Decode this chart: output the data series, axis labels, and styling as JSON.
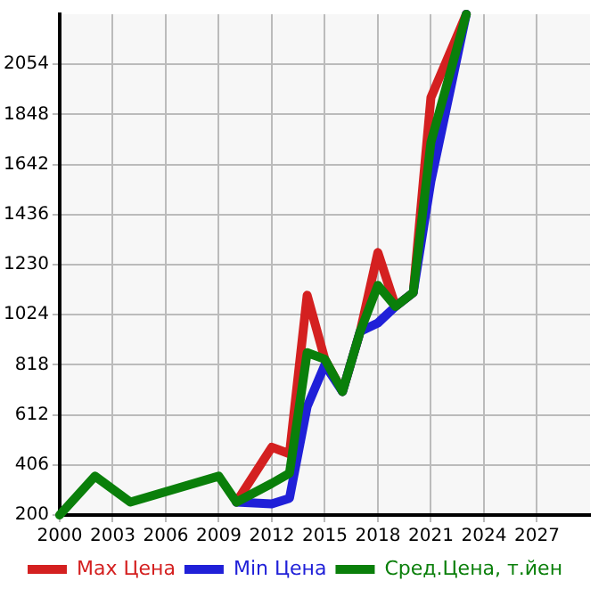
{
  "chart_data": {
    "type": "line",
    "x": [
      2000,
      2002,
      2004,
      2009,
      2010,
      2012,
      2013,
      2014,
      2015,
      2016,
      2017,
      2018,
      2019,
      2020,
      2021,
      2023
    ],
    "series": [
      {
        "name": "Max Цена",
        "color": "#d42020",
        "values": [
          null,
          null,
          null,
          null,
          253,
          479,
          452,
          1104,
          841,
          708,
          955,
          1280,
          1058,
          1115,
          1917,
          2260
        ]
      },
      {
        "name": "Min Цена",
        "color": "#2020d8",
        "values": [
          null,
          null,
          null,
          null,
          253,
          246,
          269,
          646,
          818,
          708,
          955,
          990,
          1058,
          1115,
          1573,
          2260
        ]
      },
      {
        "name": "Сред.Цена, т.йен",
        "color": "#0a7f0a",
        "values": [
          200,
          360,
          253,
          360,
          253,
          330,
          372,
          868,
          841,
          708,
          955,
          1145,
          1058,
          1115,
          1733,
          2260
        ]
      }
    ],
    "xlim": [
      2000,
      2030
    ],
    "xticks": [
      2000,
      2003,
      2006,
      2009,
      2012,
      2015,
      2018,
      2021,
      2024,
      2027
    ],
    "ylim": [
      200,
      2260
    ],
    "yticks": [
      200,
      406,
      612,
      818,
      1024,
      1230,
      1436,
      1642,
      1848,
      2054
    ],
    "grid": true,
    "legend": "bottom",
    "marker": "none",
    "line_style": "solid"
  }
}
